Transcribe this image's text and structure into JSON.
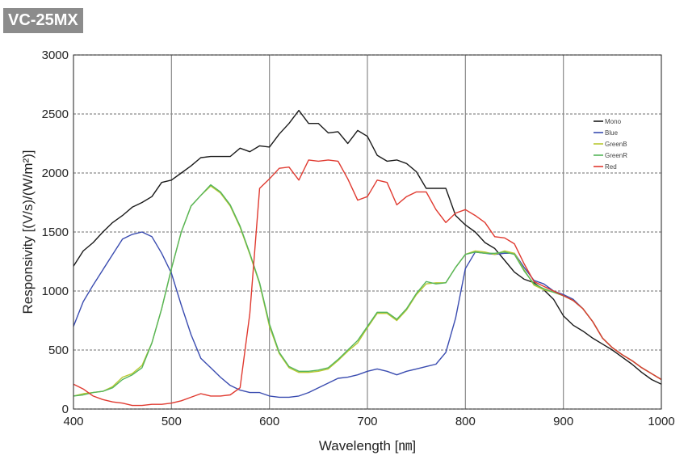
{
  "model_badge": "VC-25MX",
  "chart_data": {
    "type": "line",
    "title": "",
    "xlabel": "Wavelength [㎚]",
    "ylabel": "Responsivity [(V/s)/(W/m²)]",
    "xlim": [
      400,
      1000
    ],
    "ylim": [
      0,
      3000
    ],
    "xticks": [
      400,
      500,
      600,
      700,
      800,
      900,
      1000
    ],
    "yticks": [
      0,
      500,
      1000,
      1500,
      2000,
      2500,
      3000
    ],
    "grid": true,
    "legend_position": "upper-right",
    "series": [
      {
        "name": "Mono",
        "color": "#1a1a1a",
        "x": [
          400,
          410,
          420,
          430,
          440,
          450,
          460,
          470,
          480,
          490,
          500,
          510,
          520,
          530,
          540,
          550,
          560,
          570,
          580,
          590,
          600,
          610,
          620,
          630,
          640,
          650,
          660,
          670,
          680,
          690,
          700,
          710,
          720,
          730,
          740,
          750,
          760,
          770,
          780,
          790,
          800,
          810,
          820,
          830,
          840,
          850,
          860,
          870,
          880,
          890,
          900,
          910,
          920,
          930,
          940,
          950,
          960,
          970,
          980,
          990,
          1000
        ],
        "y": [
          1210,
          1340,
          1410,
          1500,
          1580,
          1640,
          1710,
          1750,
          1800,
          1920,
          1940,
          2000,
          2060,
          2130,
          2140,
          2140,
          2140,
          2210,
          2180,
          2230,
          2220,
          2330,
          2420,
          2530,
          2420,
          2420,
          2340,
          2350,
          2250,
          2360,
          2310,
          2150,
          2100,
          2110,
          2080,
          2010,
          1870,
          1870,
          1870,
          1640,
          1560,
          1500,
          1410,
          1360,
          1260,
          1160,
          1100,
          1070,
          1010,
          930,
          790,
          710,
          660,
          600,
          550,
          500,
          440,
          380,
          310,
          250,
          210
        ]
      },
      {
        "name": "Blue",
        "color": "#3a4cb0",
        "x": [
          400,
          410,
          420,
          430,
          440,
          450,
          460,
          470,
          480,
          490,
          500,
          510,
          520,
          530,
          540,
          550,
          560,
          570,
          580,
          590,
          600,
          610,
          620,
          630,
          640,
          650,
          660,
          670,
          680,
          690,
          700,
          710,
          720,
          730,
          740,
          750,
          760,
          770,
          780,
          790,
          800,
          810,
          820,
          830,
          840,
          850,
          860,
          870,
          880,
          890,
          900,
          910,
          920,
          930,
          940,
          950,
          960,
          970,
          980,
          990,
          1000
        ],
        "y": [
          700,
          910,
          1050,
          1180,
          1310,
          1440,
          1480,
          1500,
          1460,
          1320,
          1150,
          880,
          630,
          430,
          350,
          270,
          200,
          160,
          140,
          140,
          110,
          100,
          100,
          110,
          140,
          180,
          220,
          260,
          270,
          290,
          320,
          340,
          320,
          290,
          320,
          340,
          360,
          380,
          480,
          770,
          1190,
          1330,
          1320,
          1310,
          1320,
          1320,
          1200,
          1090,
          1060,
          1000,
          970,
          930,
          850,
          740,
          600,
          520,
          460,
          410,
          350,
          300,
          250
        ]
      },
      {
        "name": "GreenB",
        "color": "#b8c832",
        "x": [
          400,
          410,
          420,
          430,
          440,
          450,
          460,
          470,
          480,
          490,
          500,
          510,
          520,
          530,
          540,
          550,
          560,
          570,
          580,
          590,
          600,
          610,
          620,
          630,
          640,
          650,
          660,
          670,
          680,
          690,
          700,
          710,
          720,
          730,
          740,
          750,
          760,
          770,
          780,
          790,
          800,
          810,
          820,
          830,
          840,
          850,
          860,
          870,
          880,
          890,
          900,
          910,
          920,
          930,
          940,
          950,
          960,
          970,
          980,
          990,
          1000
        ],
        "y": [
          110,
          130,
          140,
          150,
          190,
          270,
          300,
          370,
          560,
          850,
          1190,
          1500,
          1720,
          1810,
          1890,
          1830,
          1720,
          1540,
          1310,
          1060,
          700,
          470,
          350,
          310,
          310,
          320,
          340,
          410,
          490,
          560,
          690,
          810,
          810,
          750,
          840,
          970,
          1060,
          1070,
          1070,
          1200,
          1310,
          1340,
          1330,
          1310,
          1340,
          1320,
          1180,
          1050,
          1010,
          990,
          960,
          920,
          850,
          740,
          600,
          520,
          460,
          410,
          350,
          300,
          250
        ]
      },
      {
        "name": "GreenR",
        "color": "#55b55a",
        "x": [
          400,
          410,
          420,
          430,
          440,
          450,
          460,
          470,
          480,
          490,
          500,
          510,
          520,
          530,
          540,
          550,
          560,
          570,
          580,
          590,
          600,
          610,
          620,
          630,
          640,
          650,
          660,
          670,
          680,
          690,
          700,
          710,
          720,
          730,
          740,
          750,
          760,
          770,
          780,
          790,
          800,
          810,
          820,
          830,
          840,
          850,
          860,
          870,
          880,
          890,
          900,
          910,
          920,
          930,
          940,
          950,
          960,
          970,
          980,
          990,
          1000
        ],
        "y": [
          110,
          120,
          140,
          150,
          180,
          250,
          290,
          350,
          560,
          850,
          1190,
          1500,
          1720,
          1810,
          1900,
          1840,
          1730,
          1550,
          1320,
          1070,
          720,
          480,
          360,
          320,
          320,
          330,
          350,
          420,
          500,
          580,
          700,
          820,
          820,
          760,
          850,
          980,
          1080,
          1060,
          1070,
          1200,
          1310,
          1330,
          1320,
          1320,
          1330,
          1310,
          1170,
          1060,
          1020,
          990,
          960,
          920,
          850,
          740,
          600,
          520,
          460,
          410,
          350,
          300,
          250
        ]
      },
      {
        "name": "Red",
        "color": "#e03a30",
        "x": [
          400,
          410,
          420,
          430,
          440,
          450,
          460,
          470,
          480,
          490,
          500,
          510,
          520,
          530,
          540,
          550,
          560,
          570,
          580,
          590,
          600,
          610,
          620,
          630,
          640,
          650,
          660,
          670,
          680,
          690,
          700,
          710,
          720,
          730,
          740,
          750,
          760,
          770,
          780,
          790,
          800,
          810,
          820,
          830,
          840,
          850,
          860,
          870,
          880,
          890,
          900,
          910,
          920,
          930,
          940,
          950,
          960,
          970,
          980,
          990,
          1000
        ],
        "y": [
          210,
          170,
          110,
          80,
          60,
          50,
          30,
          30,
          40,
          40,
          50,
          70,
          100,
          130,
          110,
          110,
          120,
          180,
          810,
          1870,
          1950,
          2040,
          2050,
          1940,
          2110,
          2100,
          2110,
          2100,
          1950,
          1770,
          1800,
          1940,
          1920,
          1730,
          1800,
          1840,
          1840,
          1690,
          1580,
          1660,
          1690,
          1640,
          1580,
          1460,
          1450,
          1400,
          1230,
          1080,
          1040,
          1000,
          960,
          920,
          850,
          740,
          600,
          520,
          460,
          410,
          350,
          300,
          250
        ]
      }
    ]
  }
}
